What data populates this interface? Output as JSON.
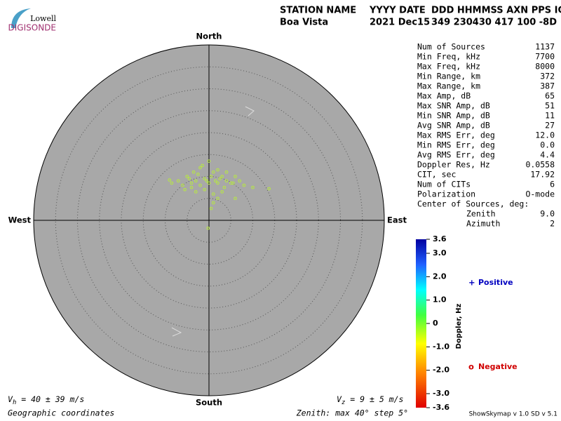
{
  "logo": {
    "top": "Lowell",
    "bottom": "DIGISONDE"
  },
  "header": {
    "columns": [
      "STATION NAME",
      "YYYY DATE",
      "DDD HHMMSS AXN PPS IGP"
    ],
    "values": [
      "Boa Vista",
      "2021 Dec15",
      "349 230430 417 100 -8D"
    ]
  },
  "stats": [
    [
      "Num of Sources",
      "1137"
    ],
    [
      "Min Freq, kHz",
      "7700"
    ],
    [
      "Max Freq, kHz",
      "8000"
    ],
    [
      "Min Range, km",
      "372"
    ],
    [
      "Max Range, km",
      "387"
    ],
    [
      "Max Amp, dB",
      "65"
    ],
    [
      "Max SNR Amp, dB",
      "51"
    ],
    [
      "Min SNR Amp, dB",
      "11"
    ],
    [
      "Avg SNR Amp, dB",
      "27"
    ],
    [
      "Max RMS Err, deg",
      "12.0"
    ],
    [
      "Min RMS Err, deg",
      "0.0"
    ],
    [
      "Avg RMS Err, deg",
      "4.4"
    ],
    [
      "Doppler Res, Hz",
      "0.0558"
    ],
    [
      "CIT, sec",
      "17.92"
    ],
    [
      "Num of CITs",
      "6"
    ],
    [
      "Polarization",
      "O-mode"
    ]
  ],
  "center": {
    "title": "Center of Sources, deg:",
    "zenith_label": "Zenith",
    "zenith": "9.0",
    "azimuth_label": "Azimuth",
    "azimuth": "2"
  },
  "chart_data": {
    "type": "skymap",
    "directions": {
      "north": "North",
      "south": "South",
      "east": "East",
      "west": "West"
    },
    "zenith_max": 40,
    "zenith_step": 5,
    "point_color": "#b8ec3c",
    "x": [
      -8.5,
      -7,
      -6,
      -5,
      -4.5,
      -4,
      -3.5,
      -3,
      -2.5,
      -2,
      -1.5,
      -1,
      -0.5,
      0,
      0.5,
      1,
      1.5,
      2,
      2.5,
      3,
      3.5,
      4,
      5,
      6,
      7,
      8,
      10,
      13.7,
      -9,
      -5.5,
      -3,
      -1,
      1,
      3,
      -2,
      0,
      2,
      4,
      1,
      -0.2,
      -4,
      6,
      5.5,
      0.5,
      2
    ],
    "y": [
      8.5,
      9,
      8,
      10,
      9.5,
      8.5,
      11,
      9,
      10.5,
      8,
      12.5,
      9.5,
      9,
      8.5,
      10,
      11,
      9,
      8.5,
      9.5,
      10,
      7.5,
      9,
      8.5,
      10,
      9,
      8,
      7.5,
      7.2,
      9.2,
      7,
      6.5,
      7,
      6,
      6.5,
      12,
      13.5,
      11.5,
      11,
      4,
      -1.8,
      7.5,
      5,
      8.5,
      2.7,
      5
    ],
    "colorbar": {
      "label": "Doppler, Hz",
      "lim": [
        -3.6,
        3.6
      ],
      "ticks": [
        3.6,
        {
          "value": 3,
          "label": "3.0"
        },
        {
          "value": 2,
          "label": "2.0"
        },
        {
          "value": 1,
          "label": "1.0"
        },
        0,
        {
          "value": -1,
          "label": "-1.0"
        },
        {
          "value": -2,
          "label": "-2.0"
        },
        {
          "value": -3,
          "label": "-3.0"
        },
        -3.6
      ]
    },
    "legend": {
      "positive_symbol": "+",
      "positive": "Positive",
      "negative_symbol": "o",
      "negative": "Negative"
    }
  },
  "footer": {
    "vh_v": "V",
    "vh_sub": "h",
    "vh_rest": " = 40 ± 39 m/s",
    "vz_v": "V",
    "vz_sub": "z",
    "vz_rest": " = 9 ± 5 m/s",
    "coords": "Geographic coordinates",
    "zenith": "Zenith: max 40°  step 5°",
    "version": "ShowSkymap v 1.0   SD v 5.1"
  }
}
